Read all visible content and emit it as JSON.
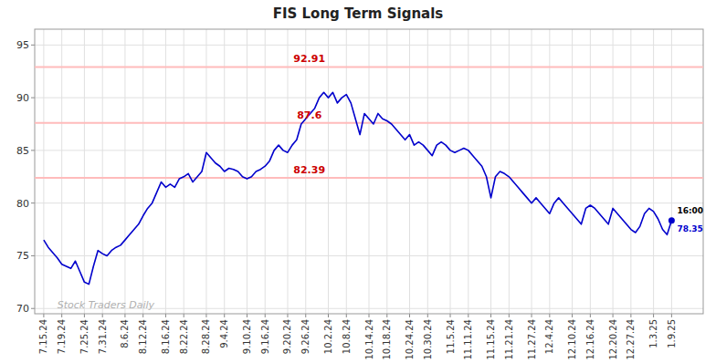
{
  "chart_data": {
    "type": "line",
    "title": "FIS Long Term Signals",
    "categories": [
      "7.15.24",
      null,
      null,
      null,
      "7.19.24",
      null,
      null,
      null,
      null,
      "7.25.24",
      null,
      null,
      null,
      "7.31.24",
      null,
      null,
      null,
      null,
      "8.6.24",
      null,
      null,
      null,
      "8.12.24",
      null,
      null,
      null,
      null,
      "8.16.24",
      null,
      null,
      null,
      "8.22.24",
      null,
      null,
      null,
      null,
      "8.28.24",
      null,
      null,
      null,
      "9.4.24",
      null,
      null,
      null,
      null,
      "9.10.24",
      null,
      null,
      null,
      "9.16.24",
      null,
      null,
      null,
      null,
      "9.20.24",
      null,
      null,
      null,
      "9.26.24",
      null,
      null,
      null,
      null,
      "10.2.24",
      null,
      null,
      null,
      "10.8.24",
      null,
      null,
      null,
      null,
      "10.14.24",
      null,
      null,
      null,
      "10.18.24",
      null,
      null,
      null,
      null,
      "10.24.24",
      null,
      null,
      null,
      "10.30.24",
      null,
      null,
      null,
      null,
      "11.5.24",
      null,
      null,
      null,
      "11.11.24",
      null,
      null,
      null,
      null,
      "11.15.24",
      null,
      null,
      null,
      "11.21.24",
      null,
      null,
      null,
      null,
      "11.27.24",
      null,
      null,
      null,
      "12.4.24",
      null,
      null,
      null,
      null,
      "12.10.24",
      null,
      null,
      null,
      "12.16.24",
      null,
      null,
      null,
      null,
      "12.20.24",
      null,
      null,
      null,
      "12.27.24",
      null,
      null,
      null,
      null,
      "1.3.25",
      null,
      null,
      null,
      "1.9.25"
    ],
    "series": [
      {
        "color": "#0000cc",
        "values": [
          76.5,
          75.8,
          75.3,
          74.8,
          74.2,
          74.0,
          73.8,
          74.5,
          73.5,
          72.5,
          72.3,
          74.0,
          75.5,
          75.2,
          75.0,
          75.5,
          75.8,
          76.0,
          76.5,
          77.0,
          77.5,
          78.0,
          78.8,
          79.5,
          80.0,
          81.0,
          82.0,
          81.5,
          81.8,
          81.5,
          82.3,
          82.5,
          82.8,
          82.0,
          82.5,
          83.0,
          84.8,
          84.3,
          83.8,
          83.5,
          83.0,
          83.3,
          83.2,
          83.0,
          82.5,
          82.3,
          82.5,
          83.0,
          83.2,
          83.5,
          84.0,
          85.0,
          85.5,
          85.0,
          84.8,
          85.5,
          86.0,
          87.5,
          88.0,
          88.5,
          89.0,
          90.0,
          90.5,
          90.0,
          90.5,
          89.5,
          90.0,
          90.3,
          89.5,
          88.0,
          86.5,
          88.5,
          88.0,
          87.5,
          88.5,
          88.0,
          87.8,
          87.5,
          87.0,
          86.5,
          86.0,
          86.5,
          85.5,
          85.8,
          85.5,
          85.0,
          84.5,
          85.5,
          85.8,
          85.5,
          85.0,
          84.8,
          85.0,
          85.2,
          85.0,
          84.5,
          84.0,
          83.5,
          82.5,
          80.5,
          82.5,
          83.0,
          82.8,
          82.5,
          82.0,
          81.5,
          81.0,
          80.5,
          80.0,
          80.5,
          80.0,
          79.5,
          79.0,
          80.0,
          80.5,
          80.0,
          79.5,
          79.0,
          78.5,
          78.0,
          79.5,
          79.8,
          79.5,
          79.0,
          78.5,
          78.0,
          79.5,
          79.0,
          78.5,
          78.0,
          77.5,
          77.2,
          77.8,
          79.0,
          79.5,
          79.2,
          78.5,
          77.5,
          77.0,
          78.35
        ]
      }
    ],
    "last_point": {
      "value": 78.35,
      "label": "78.35",
      "time": "16:00"
    },
    "hlines": [
      {
        "value": 82.39,
        "label": "82.39",
        "color": "#ffbbbb",
        "label_color": "#cc0000"
      },
      {
        "value": 87.6,
        "label": "87.6",
        "color": "#ffbbbb",
        "label_color": "#cc0000"
      },
      {
        "value": 92.91,
        "label": "92.91",
        "color": "#ffbbbb",
        "label_color": "#cc0000"
      }
    ],
    "watermark": "Stock Traders Daily",
    "ylim": [
      69.5,
      96.5
    ],
    "yticks": [
      70,
      75,
      80,
      85,
      90,
      95
    ],
    "grid": true
  }
}
